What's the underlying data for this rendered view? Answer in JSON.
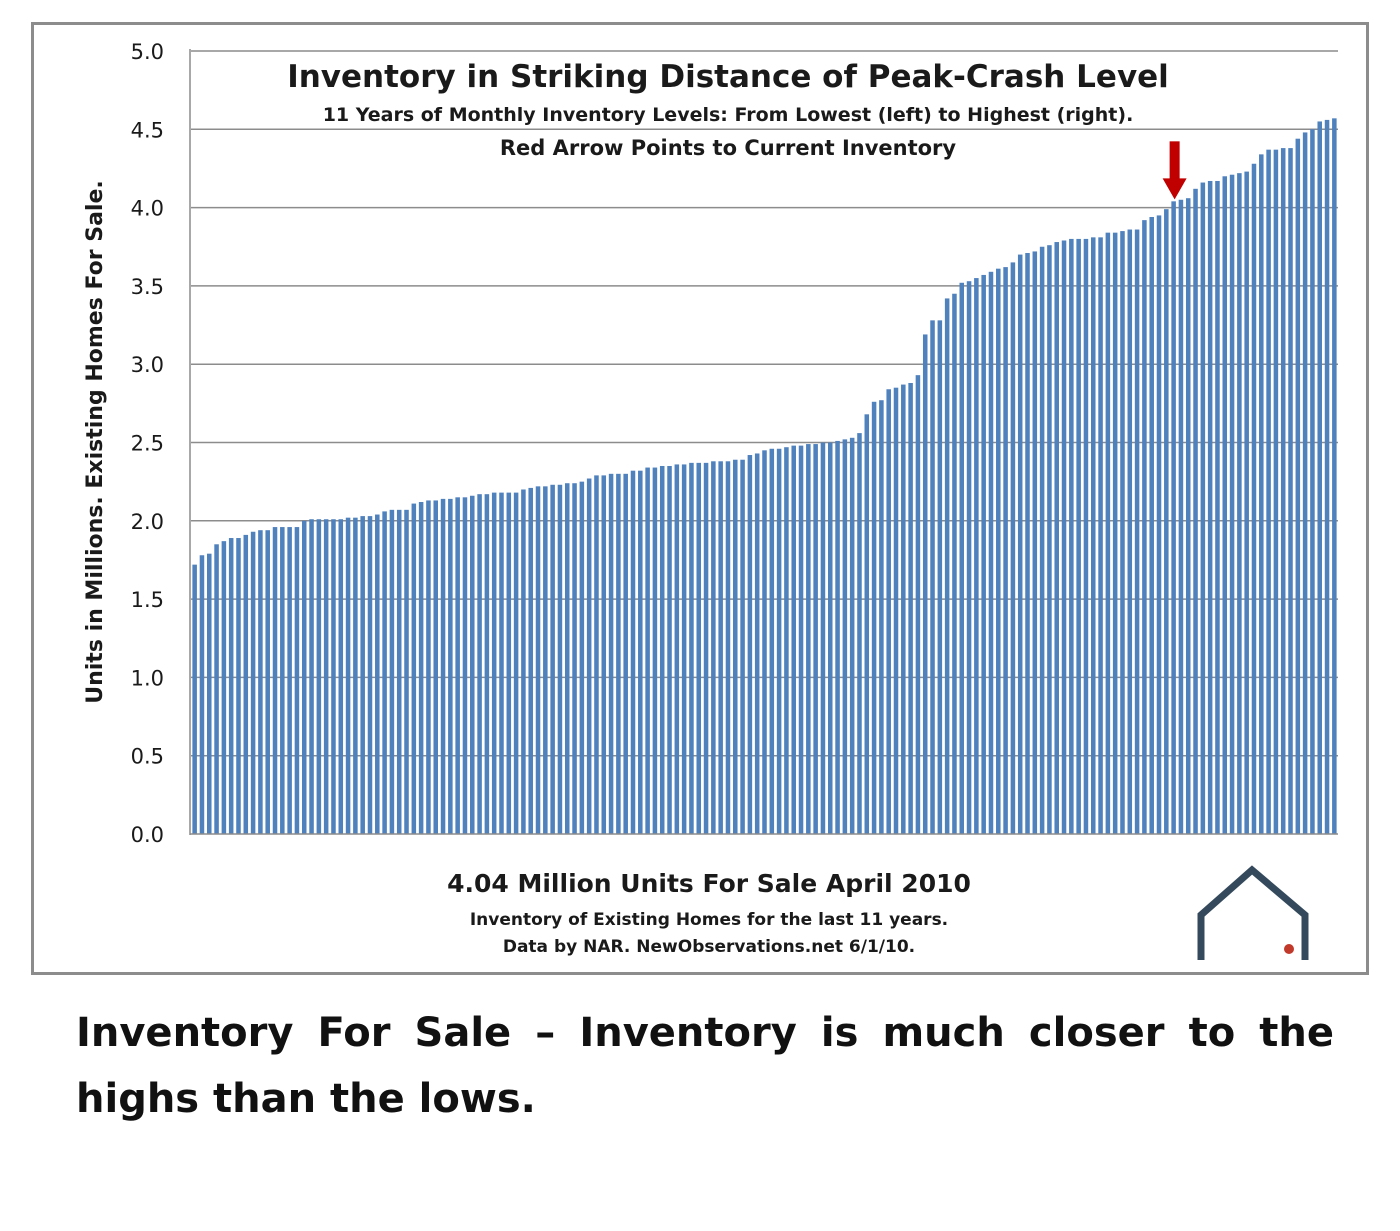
{
  "caption": "Inventory For Sale – Inventory is much closer to the highs than the lows.",
  "chart_data": {
    "type": "bar",
    "title": "Inventory in Striking Distance of Peak-Crash Level",
    "subtitle_lines": [
      "11 Years of Monthly Inventory Levels: From Lowest (left) to Highest (right).",
      "Red Arrow Points to Current Inventory"
    ],
    "ylabel": "Units in Millions. Existing Homes For Sale.",
    "xlabel_lines": [
      "4.04 Million Units For Sale April 2010",
      "Inventory of Existing Homes  for the last 11 years.",
      "Data by NAR. NewObservations.net 6/1/10."
    ],
    "ylim": [
      0,
      5
    ],
    "yticks": [
      "0.0",
      "0.5",
      "1.0",
      "1.5",
      "2.0",
      "2.5",
      "3.0",
      "3.5",
      "4.0",
      "4.5",
      "5.0"
    ],
    "grid": true,
    "bar_color": "#4f81bd",
    "highlight_color": "#c00000",
    "current_value": 4.04,
    "values": [
      1.72,
      1.78,
      1.79,
      1.85,
      1.87,
      1.89,
      1.89,
      1.91,
      1.93,
      1.94,
      1.94,
      1.96,
      1.96,
      1.96,
      1.96,
      2.0,
      2.01,
      2.01,
      2.01,
      2.01,
      2.01,
      2.02,
      2.02,
      2.03,
      2.03,
      2.04,
      2.06,
      2.07,
      2.07,
      2.07,
      2.11,
      2.12,
      2.13,
      2.13,
      2.14,
      2.14,
      2.15,
      2.15,
      2.16,
      2.17,
      2.17,
      2.18,
      2.18,
      2.18,
      2.18,
      2.2,
      2.21,
      2.22,
      2.22,
      2.23,
      2.23,
      2.24,
      2.24,
      2.25,
      2.27,
      2.29,
      2.29,
      2.3,
      2.3,
      2.3,
      2.32,
      2.32,
      2.34,
      2.34,
      2.35,
      2.35,
      2.36,
      2.36,
      2.37,
      2.37,
      2.37,
      2.38,
      2.38,
      2.38,
      2.39,
      2.39,
      2.42,
      2.43,
      2.45,
      2.46,
      2.46,
      2.47,
      2.48,
      2.48,
      2.49,
      2.49,
      2.5,
      2.5,
      2.51,
      2.52,
      2.53,
      2.56,
      2.68,
      2.76,
      2.77,
      2.84,
      2.85,
      2.87,
      2.88,
      2.93,
      3.19,
      3.28,
      3.28,
      3.42,
      3.45,
      3.52,
      3.53,
      3.55,
      3.57,
      3.59,
      3.61,
      3.62,
      3.65,
      3.7,
      3.71,
      3.72,
      3.75,
      3.76,
      3.78,
      3.79,
      3.8,
      3.8,
      3.8,
      3.81,
      3.81,
      3.84,
      3.84,
      3.85,
      3.86,
      3.86,
      3.92,
      3.94,
      3.95,
      3.99,
      4.04,
      4.05,
      4.06,
      4.12,
      4.16,
      4.17,
      4.17,
      4.2,
      4.21,
      4.22,
      4.23,
      4.28,
      4.34,
      4.37,
      4.37,
      4.38,
      4.38,
      4.44,
      4.48,
      4.5,
      4.55,
      4.56,
      4.57
    ]
  },
  "logo": {
    "name": "house-logo",
    "stroke_color": "#344a5c",
    "dot_color": "#c0392b"
  }
}
